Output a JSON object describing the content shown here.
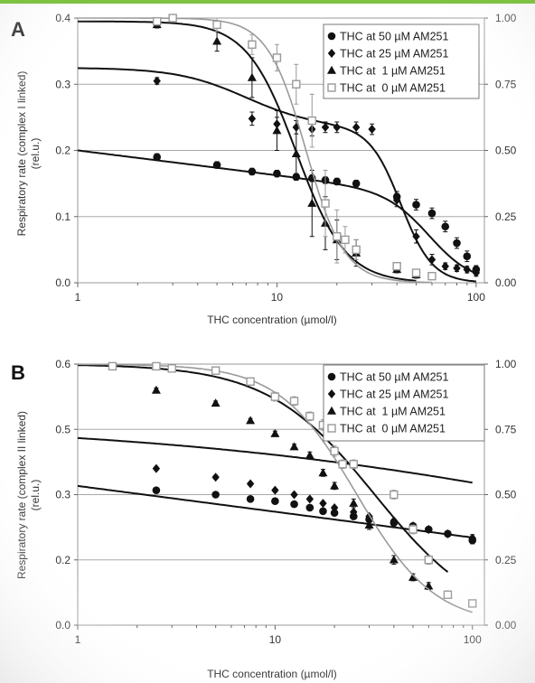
{
  "chart_data": [
    {
      "type": "line",
      "panel_label": "A",
      "xlabel": "THC concentration (µmol/l)",
      "ylabel": "Respiratory rate (complex I linked)\n(rel.u.)",
      "xscale": "log",
      "xlim": [
        1,
        110
      ],
      "xticks": [
        1,
        10,
        100
      ],
      "ylim": [
        0,
        0.4
      ],
      "yticks": [
        "0.0",
        "0.1",
        "0.2",
        "0.3",
        "0.4"
      ],
      "y2lim": [
        0,
        1
      ],
      "y2ticks": [
        "0.00",
        "0.25",
        "0.50",
        "0.75",
        "1.00"
      ],
      "grid": "horizontal",
      "legend_position": "top-right",
      "series": [
        {
          "name": "THC at 50 µM AM251",
          "marker": "circle",
          "color": "#111111",
          "x": [
            2.5,
            5,
            7.5,
            10,
            12.5,
            15,
            17.5,
            20,
            25,
            40,
            50,
            60,
            70,
            80,
            90,
            100
          ],
          "y": [
            0.19,
            0.178,
            0.168,
            0.165,
            0.16,
            0.158,
            0.155,
            0.153,
            0.15,
            0.13,
            0.118,
            0.105,
            0.085,
            0.06,
            0.04,
            0.02
          ],
          "err": [
            0.005,
            0.005,
            0.005,
            0.005,
            0.005,
            0.005,
            0.005,
            0.005,
            0.005,
            0.008,
            0.008,
            0.008,
            0.008,
            0.008,
            0.008,
            0.006
          ],
          "fit": {
            "top": 0.2,
            "slope": 0.0375,
            "bottom": 0,
            "ec50": 60,
            "hill": 4
          }
        },
        {
          "name": "THC at 25 µM AM251",
          "marker": "diamond",
          "color": "#111111",
          "x": [
            2.5,
            7.5,
            10,
            12.5,
            15,
            17.5,
            20,
            25,
            30,
            40,
            50,
            60,
            70,
            80,
            90,
            100
          ],
          "y": [
            0.305,
            0.248,
            0.24,
            0.235,
            0.232,
            0.235,
            0.235,
            0.235,
            0.232,
            0.125,
            0.07,
            0.035,
            0.025,
            0.022,
            0.02,
            0.015
          ],
          "err": [
            0.005,
            0.01,
            0.01,
            0.01,
            0.01,
            0.008,
            0.008,
            0.008,
            0.008,
            0.01,
            0.01,
            0.008,
            0.005,
            0.005,
            0.005,
            0.005
          ],
          "fit": {
            "top": 0.325,
            "bottom": 0.235,
            "ec50": 7,
            "hill": 2.5,
            "top2": 0.235,
            "bottom2": 0,
            "ec502": 42,
            "hill2": 5.5
          }
        },
        {
          "name": "THC at  1 µM AM251",
          "marker": "triangle",
          "color": "#111111",
          "x": [
            2.5,
            5,
            7.5,
            10,
            12.5,
            15,
            17.5,
            20,
            25,
            40,
            50
          ],
          "y": [
            0.39,
            0.365,
            0.31,
            0.23,
            0.195,
            0.12,
            0.09,
            0.065,
            0.045,
            0.02,
            0.012
          ],
          "err": [
            0.005,
            0.015,
            0.03,
            0.03,
            0.04,
            0.05,
            0.04,
            0.03,
            0.02,
            0.005,
            0.005
          ],
          "fit": {
            "top": 0.395,
            "bottom": 0,
            "ec50": 12.5,
            "hill": 3.5
          }
        },
        {
          "name": "THC at  0 µM AM251",
          "marker": "square",
          "color": "#9a9a9a",
          "x": [
            2.5,
            3,
            5,
            7.5,
            10,
            12.5,
            15,
            17.5,
            20,
            22,
            25,
            40,
            50,
            60
          ],
          "y": [
            0.395,
            0.4,
            0.39,
            0.36,
            0.34,
            0.3,
            0.245,
            0.12,
            0.07,
            0.065,
            0.05,
            0.025,
            0.015,
            0.01
          ],
          "err": [
            0.004,
            0.004,
            0.01,
            0.015,
            0.02,
            0.03,
            0.04,
            0.05,
            0.04,
            0.02,
            0.015,
            0.005,
            0.005,
            0.005
          ],
          "fit": {
            "top": 0.4,
            "bottom": 0,
            "ec50": 14,
            "hill": 4.5
          }
        }
      ]
    },
    {
      "type": "line",
      "panel_label": "B",
      "xlabel": "THC concentration (µmol/l)",
      "ylabel": "Respiratory rate (complex II linked)\n(rel.u.)",
      "xscale": "log",
      "xlim": [
        1,
        115
      ],
      "xticks": [
        1,
        10,
        100
      ],
      "ylim": [
        0,
        0.6
      ],
      "yticks": [
        "0.0",
        "0.2",
        "0.3",
        "0.5",
        "0.6"
      ],
      "y2lim": [
        0,
        1
      ],
      "y2ticks": [
        "0.00",
        "0.25",
        "0.50",
        "0.75",
        "1.00"
      ],
      "grid": "horizontal",
      "legend_position": "top-right",
      "series": [
        {
          "name": "THC at 50 µM AM251",
          "marker": "circle",
          "color": "#111111",
          "x": [
            2.5,
            5,
            7.5,
            10,
            12.5,
            15,
            17.5,
            20,
            25,
            30,
            40,
            50,
            60,
            75,
            100
          ],
          "y": [
            0.31,
            0.3,
            0.29,
            0.285,
            0.278,
            0.27,
            0.262,
            0.258,
            0.25,
            0.243,
            0.235,
            0.228,
            0.22,
            0.21,
            0.195
          ],
          "err": [
            0.004,
            0.004,
            0.004,
            0.004,
            0.004,
            0.004,
            0.004,
            0.004,
            0.004,
            0.004,
            0.004,
            0.004,
            0.004,
            0.006,
            0.008
          ],
          "fit": {
            "top": 0.32,
            "slope": 0.0593,
            "bottom": 0
          }
        },
        {
          "name": "THC at 25 µM AM251",
          "marker": "diamond",
          "color": "#111111",
          "x": [
            2.5,
            5,
            7.5,
            10,
            12.5,
            15,
            17.5,
            20,
            25,
            30,
            40,
            50,
            60,
            75,
            100
          ],
          "y": [
            0.36,
            0.34,
            0.325,
            0.31,
            0.3,
            0.29,
            0.28,
            0.27,
            0.26,
            0.25,
            0.24,
            0.228,
            0.22,
            0.21,
            0.2
          ],
          "err": [
            0.004,
            0.004,
            0.004,
            0.004,
            0.004,
            0.004,
            0.004,
            0.004,
            0.004,
            0.004,
            0.004,
            0.004,
            0.004,
            0.006,
            0.008
          ],
          "fit": {
            "top": 0.47,
            "bottom": 0,
            "ec50": 1200,
            "hill": 0.335
          }
        },
        {
          "name": "THC at  1 µM AM251",
          "marker": "triangle",
          "color": "#111111",
          "x": [
            2.5,
            5,
            7.5,
            10,
            12.5,
            15,
            17.5,
            20,
            25,
            30,
            40,
            50,
            60,
            75
          ],
          "y": [
            0.54,
            0.51,
            0.47,
            0.44,
            0.41,
            0.39,
            0.35,
            0.32,
            0.28,
            0.23,
            0.15,
            0.11,
            0.09,
            0.07
          ],
          "err": [
            0.005,
            0.005,
            0.005,
            0.006,
            0.006,
            0.008,
            0.008,
            0.008,
            0.01,
            0.01,
            0.01,
            0.008,
            0.008,
            0.008
          ],
          "fit": {
            "top": 0.6,
            "bottom": 0,
            "ec50": 32,
            "hill": 1.6
          }
        },
        {
          "name": "THC at  0 µM AM251",
          "marker": "square",
          "color": "#9a9a9a",
          "x": [
            1.5,
            2.5,
            3,
            5,
            7.5,
            10,
            12.5,
            15,
            17.5,
            20,
            22,
            25,
            40,
            50,
            60,
            75,
            100
          ],
          "y": [
            0.595,
            0.595,
            0.59,
            0.585,
            0.56,
            0.525,
            0.515,
            0.48,
            0.46,
            0.4,
            0.37,
            0.37,
            0.3,
            0.22,
            0.15,
            0.07,
            0.05
          ],
          "err": [
            0.004,
            0.004,
            0.004,
            0.006,
            0.008,
            0.01,
            0.01,
            0.01,
            0.012,
            0.012,
            0.01,
            0.01,
            0.01,
            0.01,
            0.01,
            0.008,
            0.006
          ],
          "fit": {
            "top": 0.6,
            "bottom": 0,
            "ec50": 26,
            "hill": 2.2
          }
        }
      ]
    }
  ]
}
